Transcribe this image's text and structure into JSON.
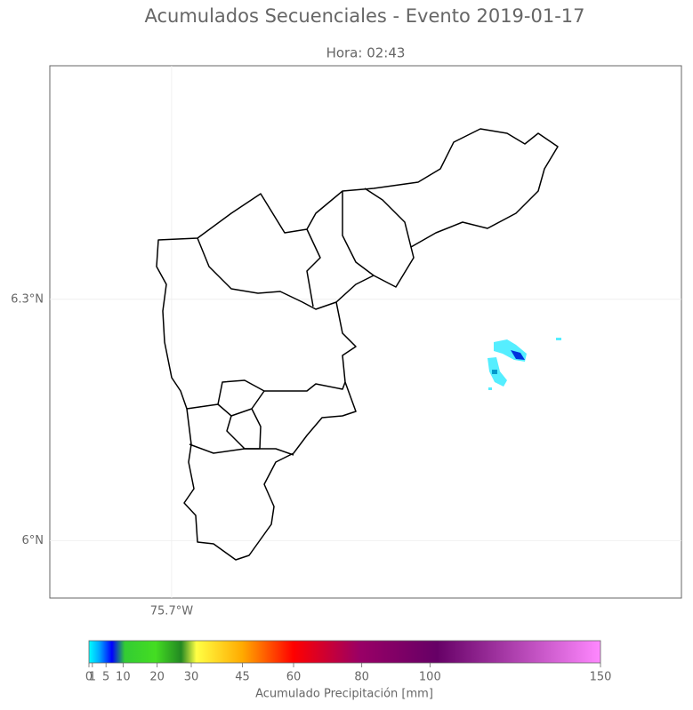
{
  "title": "Acumulados Secuenciales - Evento 2019-01-17",
  "subtitle": "Hora: 02:43",
  "map": {
    "xlim": [
      -75.851,
      -75.068
    ],
    "ylim": [
      5.929,
      6.59
    ],
    "xticks": [
      {
        "value": -75.7,
        "label": "75.7°W"
      }
    ],
    "yticks": [
      {
        "value": 6.3,
        "label": "6.3°N"
      },
      {
        "value": 6,
        "label": "6°N"
      }
    ]
  },
  "colorbar": {
    "label": "Acumulado Precipitación [mm]",
    "lim": [
      0,
      150
    ],
    "ticks": [
      0,
      1,
      5,
      10,
      20,
      30,
      45,
      60,
      80,
      100,
      150
    ]
  }
}
